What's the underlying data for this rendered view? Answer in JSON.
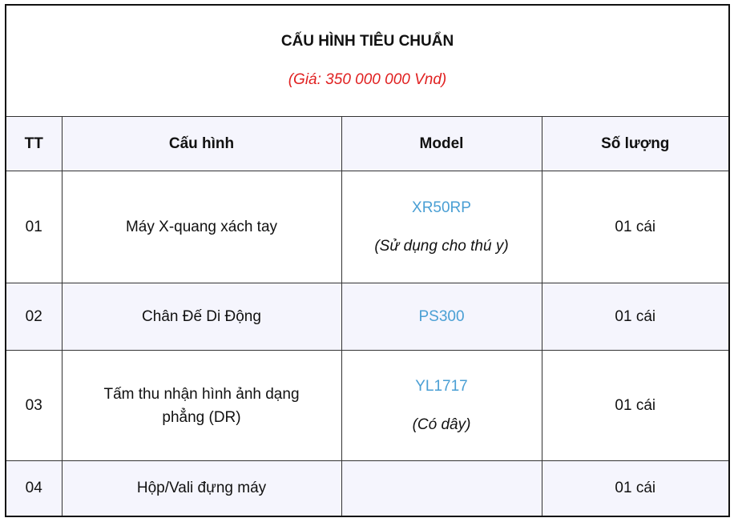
{
  "title": "CẤU HÌNH TIÊU CHUẨN",
  "price": "(Giá: 350 000 000 Vnd)",
  "headers": [
    "TT",
    "Cấu hình",
    "Model",
    "Số lượng"
  ],
  "rows": [
    {
      "tt": "01",
      "config": "Máy X-quang xách tay",
      "model": "XR50RP",
      "note": "(Sử dụng cho thú y)",
      "qty": "01 cái"
    },
    {
      "tt": "02",
      "config": "Chân Đế Di Động",
      "model": "PS300",
      "note": "",
      "qty": "01 cái"
    },
    {
      "tt": "03",
      "config": "Tấm thu nhận hình ảnh dạng phẳng (DR)",
      "model": "YL1717",
      "note": "(Có dây)",
      "qty": "01 cái"
    },
    {
      "tt": "04",
      "config": "Hộp/Vali đựng máy",
      "model": "",
      "note": "",
      "qty": "01 cái"
    }
  ],
  "colors": {
    "price": "#e02020",
    "model": "#4a9fd4",
    "stripe": "#f5f5fd"
  }
}
